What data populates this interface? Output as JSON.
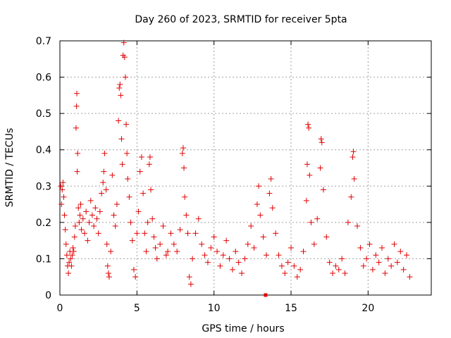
{
  "chart_data": {
    "type": "scatter",
    "title": "Day 260 of 2023, SRMTID for receiver 5pta",
    "xlabel": "GPS time / hours",
    "ylabel": "SRMTID / TECUs",
    "xlim": [
      0,
      24.1
    ],
    "ylim": [
      0,
      0.7
    ],
    "xticks": [
      0,
      5,
      10,
      15,
      20
    ],
    "yticks": [
      0,
      0.1,
      0.2,
      0.3,
      0.4,
      0.5,
      0.6,
      0.7
    ],
    "grid": true,
    "marker": "+",
    "color": "#e00000",
    "series": [
      {
        "name": "SRMTID 5pta",
        "points": [
          [
            0.05,
            0.3
          ],
          [
            0.1,
            0.25
          ],
          [
            0.15,
            0.29
          ],
          [
            0.2,
            0.31
          ],
          [
            0.25,
            0.27
          ],
          [
            0.3,
            0.22
          ],
          [
            0.35,
            0.18
          ],
          [
            0.4,
            0.14
          ],
          [
            0.45,
            0.11
          ],
          [
            0.5,
            0.08
          ],
          [
            0.55,
            0.06
          ],
          [
            0.6,
            0.09
          ],
          [
            0.65,
            0.12
          ],
          [
            0.7,
            0.1
          ],
          [
            0.75,
            0.08
          ],
          [
            0.8,
            0.11
          ],
          [
            0.85,
            0.13
          ],
          [
            0.9,
            0.12
          ],
          [
            0.95,
            0.16
          ],
          [
            1.0,
            0.19
          ],
          [
            1.05,
            0.46
          ],
          [
            1.08,
            0.52
          ],
          [
            1.1,
            0.555
          ],
          [
            1.12,
            0.34
          ],
          [
            1.15,
            0.39
          ],
          [
            1.2,
            0.24
          ],
          [
            1.25,
            0.2
          ],
          [
            1.3,
            0.22
          ],
          [
            1.35,
            0.25
          ],
          [
            1.4,
            0.18
          ],
          [
            1.5,
            0.21
          ],
          [
            1.6,
            0.17
          ],
          [
            1.7,
            0.23
          ],
          [
            1.8,
            0.15
          ],
          [
            1.9,
            0.2
          ],
          [
            2.0,
            0.26
          ],
          [
            2.1,
            0.22
          ],
          [
            2.2,
            0.19
          ],
          [
            2.3,
            0.24
          ],
          [
            2.4,
            0.21
          ],
          [
            2.5,
            0.17
          ],
          [
            2.6,
            0.23
          ],
          [
            2.7,
            0.28
          ],
          [
            2.8,
            0.31
          ],
          [
            2.85,
            0.34
          ],
          [
            2.9,
            0.39
          ],
          [
            3.0,
            0.29
          ],
          [
            3.05,
            0.14
          ],
          [
            3.1,
            0.08
          ],
          [
            3.15,
            0.06
          ],
          [
            3.2,
            0.05
          ],
          [
            3.3,
            0.12
          ],
          [
            3.4,
            0.33
          ],
          [
            3.5,
            0.22
          ],
          [
            3.6,
            0.19
          ],
          [
            3.7,
            0.25
          ],
          [
            3.8,
            0.48
          ],
          [
            3.85,
            0.57
          ],
          [
            3.9,
            0.58
          ],
          [
            3.95,
            0.55
          ],
          [
            4.0,
            0.43
          ],
          [
            4.05,
            0.36
          ],
          [
            4.1,
            0.66
          ],
          [
            4.15,
            0.695
          ],
          [
            4.2,
            0.655
          ],
          [
            4.25,
            0.6
          ],
          [
            4.3,
            0.47
          ],
          [
            4.35,
            0.39
          ],
          [
            4.4,
            0.32
          ],
          [
            4.5,
            0.27
          ],
          [
            4.6,
            0.2
          ],
          [
            4.7,
            0.15
          ],
          [
            4.8,
            0.07
          ],
          [
            4.9,
            0.05
          ],
          [
            5.0,
            0.17
          ],
          [
            5.1,
            0.23
          ],
          [
            5.2,
            0.34
          ],
          [
            5.3,
            0.38
          ],
          [
            5.4,
            0.28
          ],
          [
            5.5,
            0.17
          ],
          [
            5.6,
            0.12
          ],
          [
            5.7,
            0.2
          ],
          [
            5.8,
            0.36
          ],
          [
            5.85,
            0.38
          ],
          [
            5.9,
            0.29
          ],
          [
            6.0,
            0.21
          ],
          [
            6.1,
            0.16
          ],
          [
            6.2,
            0.13
          ],
          [
            6.3,
            0.1
          ],
          [
            6.5,
            0.14
          ],
          [
            6.7,
            0.19
          ],
          [
            6.9,
            0.11
          ],
          [
            7.0,
            0.12
          ],
          [
            7.2,
            0.17
          ],
          [
            7.4,
            0.14
          ],
          [
            7.6,
            0.12
          ],
          [
            7.8,
            0.18
          ],
          [
            7.95,
            0.39
          ],
          [
            8.0,
            0.405
          ],
          [
            8.05,
            0.35
          ],
          [
            8.1,
            0.27
          ],
          [
            8.2,
            0.22
          ],
          [
            8.3,
            0.17
          ],
          [
            8.4,
            0.05
          ],
          [
            8.5,
            0.03
          ],
          [
            8.6,
            0.1
          ],
          [
            8.8,
            0.17
          ],
          [
            9.0,
            0.21
          ],
          [
            9.2,
            0.14
          ],
          [
            9.4,
            0.11
          ],
          [
            9.6,
            0.09
          ],
          [
            9.8,
            0.13
          ],
          [
            10.0,
            0.16
          ],
          [
            10.2,
            0.12
          ],
          [
            10.4,
            0.08
          ],
          [
            10.6,
            0.11
          ],
          [
            10.8,
            0.15
          ],
          [
            11.0,
            0.1
          ],
          [
            11.2,
            0.07
          ],
          [
            11.4,
            0.12
          ],
          [
            11.6,
            0.09
          ],
          [
            11.8,
            0.06
          ],
          [
            12.0,
            0.1
          ],
          [
            12.2,
            0.14
          ],
          [
            12.4,
            0.19
          ],
          [
            12.6,
            0.13
          ],
          [
            12.8,
            0.25
          ],
          [
            12.9,
            0.3
          ],
          [
            13.0,
            0.22
          ],
          [
            13.2,
            0.16
          ],
          [
            13.4,
            0.11
          ],
          [
            13.6,
            0.28
          ],
          [
            13.7,
            0.32
          ],
          [
            13.8,
            0.24
          ],
          [
            14.0,
            0.17
          ],
          [
            14.2,
            0.11
          ],
          [
            14.4,
            0.08
          ],
          [
            14.6,
            0.06
          ],
          [
            14.8,
            0.09
          ],
          [
            15.0,
            0.13
          ],
          [
            15.2,
            0.08
          ],
          [
            15.4,
            0.05
          ],
          [
            15.6,
            0.07
          ],
          [
            15.8,
            0.12
          ],
          [
            16.0,
            0.26
          ],
          [
            16.05,
            0.36
          ],
          [
            16.1,
            0.47
          ],
          [
            16.15,
            0.46
          ],
          [
            16.2,
            0.33
          ],
          [
            16.3,
            0.2
          ],
          [
            16.5,
            0.14
          ],
          [
            16.7,
            0.21
          ],
          [
            16.9,
            0.35
          ],
          [
            16.95,
            0.43
          ],
          [
            17.0,
            0.42
          ],
          [
            17.1,
            0.29
          ],
          [
            17.3,
            0.16
          ],
          [
            17.5,
            0.09
          ],
          [
            17.7,
            0.06
          ],
          [
            17.9,
            0.08
          ],
          [
            18.1,
            0.07
          ],
          [
            18.3,
            0.1
          ],
          [
            18.5,
            0.06
          ],
          [
            18.7,
            0.2
          ],
          [
            18.9,
            0.27
          ],
          [
            19.0,
            0.38
          ],
          [
            19.05,
            0.395
          ],
          [
            19.1,
            0.32
          ],
          [
            19.3,
            0.19
          ],
          [
            19.5,
            0.13
          ],
          [
            19.7,
            0.08
          ],
          [
            19.9,
            0.1
          ],
          [
            20.1,
            0.14
          ],
          [
            20.3,
            0.07
          ],
          [
            20.5,
            0.11
          ],
          [
            20.7,
            0.09
          ],
          [
            20.9,
            0.13
          ],
          [
            21.1,
            0.06
          ],
          [
            21.3,
            0.1
          ],
          [
            21.5,
            0.08
          ],
          [
            21.7,
            0.14
          ],
          [
            21.9,
            0.09
          ],
          [
            22.1,
            0.12
          ],
          [
            22.3,
            0.07
          ],
          [
            22.5,
            0.11
          ],
          [
            22.7,
            0.05
          ]
        ]
      }
    ],
    "outlier_square": [
      13.35,
      0.0
    ]
  }
}
